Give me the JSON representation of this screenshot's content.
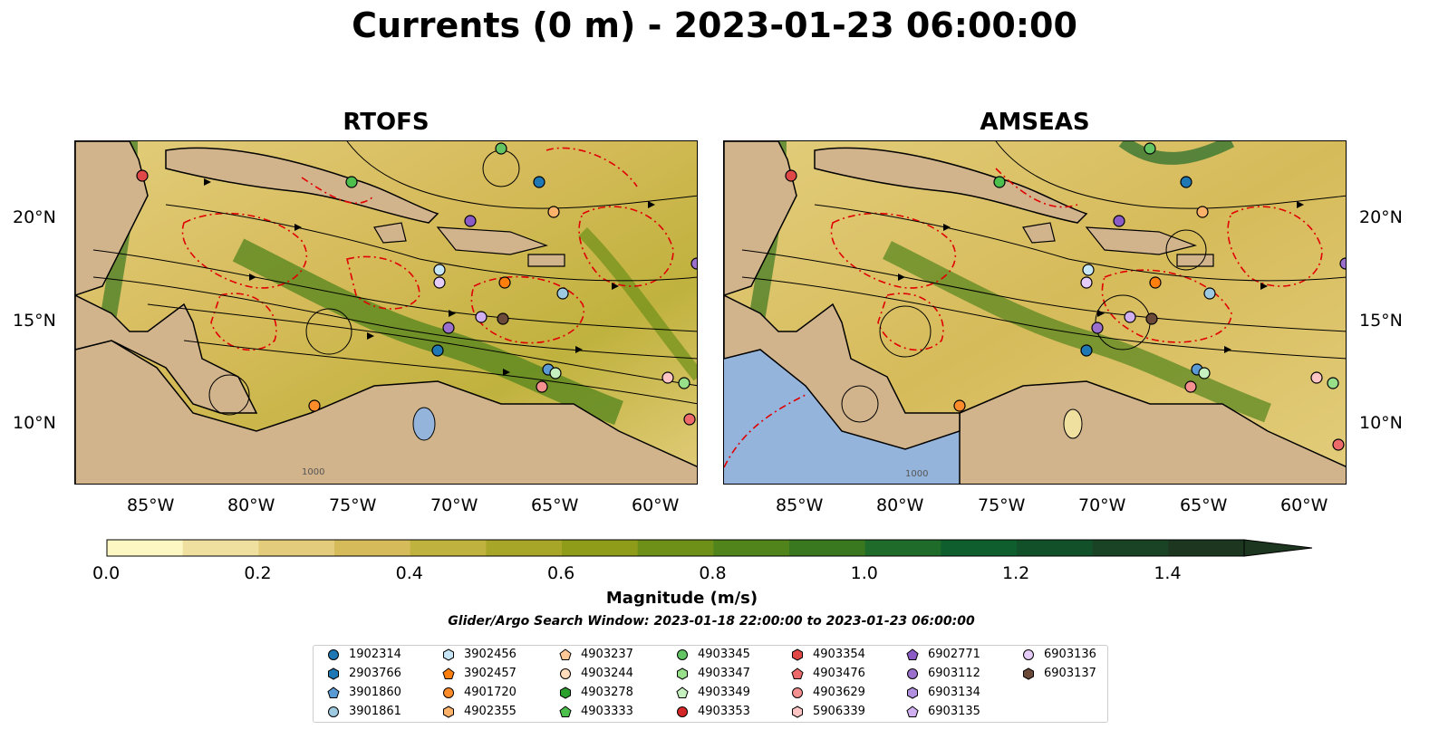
{
  "title": "Currents (0 m) - 2023-01-23 06:00:00",
  "panels": [
    {
      "title": "RTOFS"
    },
    {
      "title": "AMSEAS"
    }
  ],
  "map": {
    "lon_ticks": [
      "85°W",
      "80°W",
      "75°W",
      "70°W",
      "65°W",
      "60°W"
    ],
    "lat_ticks": [
      "20°N",
      "15°N",
      "10°N"
    ],
    "lon_range": [
      -89,
      -58
    ],
    "lat_range": [
      7,
      24
    ],
    "land_color": "#d2b48c",
    "lake_color": "#94b4dc",
    "contour_label": "1000"
  },
  "colorbar": {
    "label": "Magnitude (m/s)",
    "ticks": [
      "0.0",
      "0.2",
      "0.4",
      "0.6",
      "0.8",
      "1.0",
      "1.2",
      "1.4"
    ],
    "range": [
      0.0,
      1.5
    ],
    "extend": "max",
    "colors": [
      "#fdf7c4",
      "#f0e0a0",
      "#e3cd7c",
      "#d6bb5a",
      "#c0b23e",
      "#a8a628",
      "#8f9c1a",
      "#6e9018",
      "#52841c",
      "#3a7820",
      "#1f6b2a",
      "#0e5e2e",
      "#12502a",
      "#1a4224",
      "#1d3620"
    ]
  },
  "search_window": "Glider/Argo Search Window: 2023-01-18 22:00:00 to 2023-01-23 06:00:00",
  "legend": [
    {
      "id": "1902314",
      "color": "#1f77b4",
      "marker": "circle"
    },
    {
      "id": "2903766",
      "color": "#1f77b4",
      "marker": "hexagon"
    },
    {
      "id": "3901860",
      "color": "#5b9bd5",
      "marker": "pentagon"
    },
    {
      "id": "3901861",
      "color": "#9ecae1",
      "marker": "circle"
    },
    {
      "id": "3902456",
      "color": "#c6e6f7",
      "marker": "hexagon"
    },
    {
      "id": "3902457",
      "color": "#ff7f0e",
      "marker": "pentagon"
    },
    {
      "id": "4901720",
      "color": "#ff8c2a",
      "marker": "circle"
    },
    {
      "id": "4902355",
      "color": "#ffb26a",
      "marker": "hexagon"
    },
    {
      "id": "4903237",
      "color": "#ffc896",
      "marker": "pentagon"
    },
    {
      "id": "4903244",
      "color": "#ffdcbc",
      "marker": "circle"
    },
    {
      "id": "4903278",
      "color": "#2ca02c",
      "marker": "hexagon"
    },
    {
      "id": "4903333",
      "color": "#4cbf4c",
      "marker": "pentagon"
    },
    {
      "id": "4903345",
      "color": "#62c462",
      "marker": "circle"
    },
    {
      "id": "4903347",
      "color": "#98df8a",
      "marker": "hexagon"
    },
    {
      "id": "4903349",
      "color": "#c7f0c0",
      "marker": "pentagon"
    },
    {
      "id": "4903353",
      "color": "#d62728",
      "marker": "circle"
    },
    {
      "id": "4903354",
      "color": "#e04848",
      "marker": "hexagon"
    },
    {
      "id": "4903476",
      "color": "#ee6a6a",
      "marker": "pentagon"
    },
    {
      "id": "4903629",
      "color": "#f59090",
      "marker": "circle"
    },
    {
      "id": "5906339",
      "color": "#ffc4c4",
      "marker": "hexagon"
    },
    {
      "id": "6902771",
      "color": "#8b5cc6",
      "marker": "pentagon"
    },
    {
      "id": "6903112",
      "color": "#9a70cc",
      "marker": "circle"
    },
    {
      "id": "6903134",
      "color": "#b290e0",
      "marker": "hexagon"
    },
    {
      "id": "6903135",
      "color": "#d0b0f0",
      "marker": "pentagon"
    },
    {
      "id": "6903136",
      "color": "#e6ccf8",
      "marker": "circle"
    },
    {
      "id": "6903137",
      "color": "#6b4a3a",
      "marker": "hexagon"
    }
  ]
}
